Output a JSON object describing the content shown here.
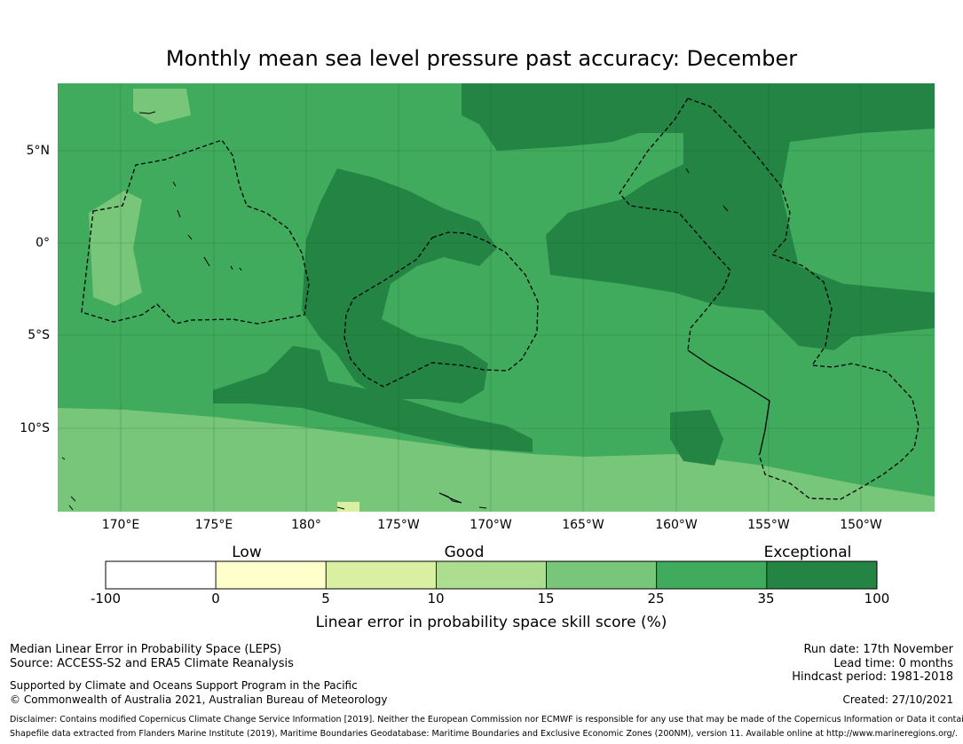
{
  "title": "Monthly mean sea level pressure past accuracy: December",
  "map": {
    "lat_labels": [
      "5°N",
      "0°",
      "5°S",
      "10°S"
    ],
    "lon_labels": [
      "170°E",
      "175°E",
      "180°",
      "175°W",
      "170°W",
      "165°W",
      "160°W",
      "155°W",
      "150°W"
    ]
  },
  "legend": {
    "categories": [
      "Low",
      "Good",
      "Exceptional"
    ],
    "ticks": [
      "-100",
      "0",
      "5",
      "10",
      "15",
      "25",
      "35",
      "100"
    ],
    "colors": [
      "#ffffff",
      "#ffffcc",
      "#d9f0a3",
      "#addd8e",
      "#78c679",
      "#41ab5d",
      "#238443"
    ],
    "title": "Linear error in probability space skill score (%)"
  },
  "footer": {
    "line1": "Median Linear Error in Probability Space (LEPS)",
    "line2": "Source: ACCESS-S2 and ERA5 Climate Reanalysis",
    "line3": "Supported by Climate and Oceans Support Program in the Pacific",
    "line4": "© Commonwealth of Australia 2021, Australian Bureau of Meteorology",
    "run_date": "Run date: 17th November",
    "lead_time": "Lead time: 0 months",
    "hindcast": "Hindcast period: 1981-2018",
    "created": "Created: 27/10/2021",
    "disclaimer1": "Disclaimer: Contains modified Copernicus Climate Change Service Information [2019]. Neither the European Commission nor ECMWF is responsible for any use that may be made of the Copernicus Information or Data it contains.",
    "disclaimer2": "Shapefile data extracted from Flanders Marine Institute (2019), Maritime Boundaries Geodatabase: Maritime Boundaries and Exclusive Economic Zones (200NM), version 11. Available online at http://www.marineregions.org/."
  }
}
